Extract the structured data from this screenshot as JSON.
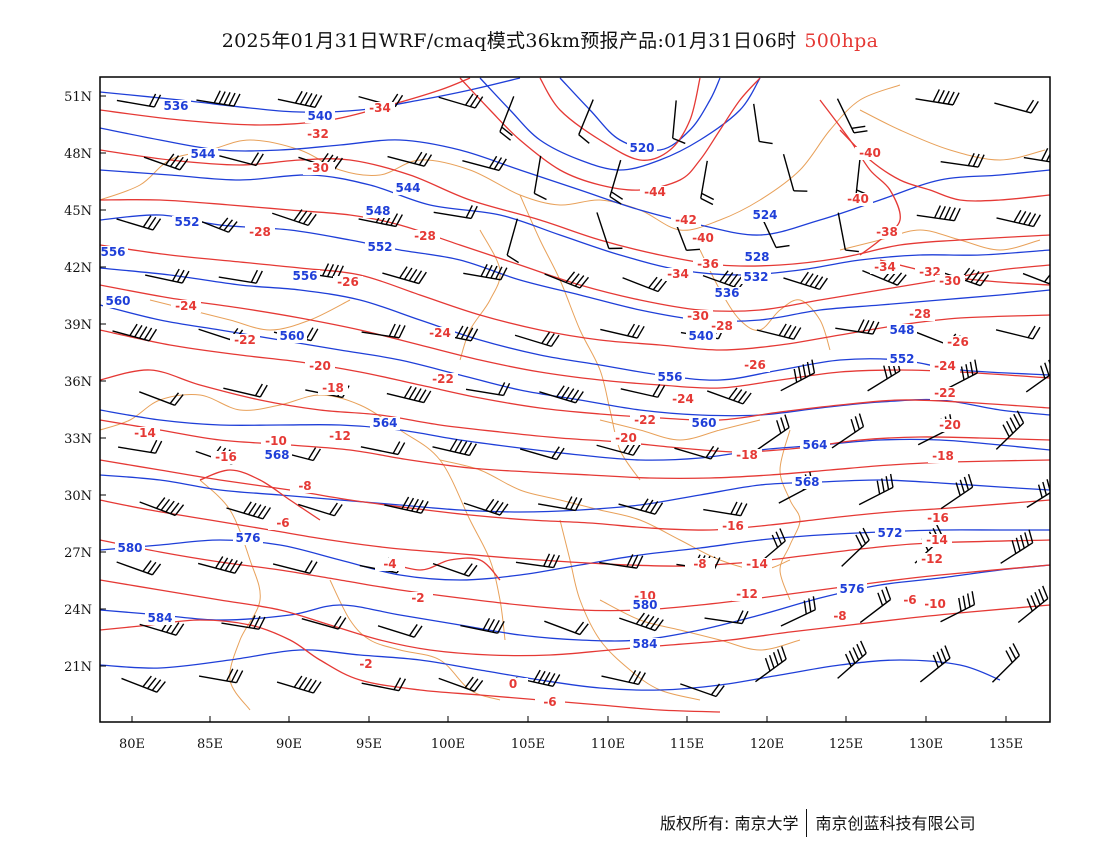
{
  "title": {
    "main": "2025年01月31日WRF/cmaq模式36km预报产品:01月31日06时",
    "level": "500hpa"
  },
  "colors": {
    "temperature": "#e53935",
    "geopotential": "#1f3fd8",
    "border": "#e8a15a",
    "wind": "#000000"
  },
  "axes": {
    "lat_labels": [
      "51N",
      "48N",
      "45N",
      "42N",
      "39N",
      "36N",
      "33N",
      "30N",
      "27N",
      "24N",
      "21N"
    ],
    "lon_labels": [
      "80E",
      "85E",
      "90E",
      "95E",
      "100E",
      "105E",
      "110E",
      "115E",
      "120E",
      "125E",
      "130E",
      "135E"
    ]
  },
  "temperature_labels": [
    "-34",
    "-32",
    "-30",
    "-30",
    "-28",
    "-28",
    "-26",
    "-24",
    "-22",
    "-24",
    "-22",
    "-20",
    "-18",
    "-16",
    "-14",
    "-12",
    "-10",
    "-8",
    "-6",
    "-4",
    "-2",
    "0",
    "-2",
    "-44",
    "-42",
    "-40",
    "-36",
    "-34",
    "-30",
    "-28",
    "-26",
    "-24",
    "-22",
    "-20",
    "-18",
    "-16",
    "-14",
    "-12",
    "-10",
    "-8",
    "-6",
    "-40",
    "-40",
    "-38",
    "-34",
    "-32",
    "-30",
    "-28",
    "-26",
    "-24",
    "-22",
    "-20",
    "-18",
    "-16",
    "-14",
    "-12",
    "-10",
    "-8",
    "-6"
  ],
  "height_labels": [
    "536",
    "540",
    "544",
    "552",
    "556",
    "560",
    "544",
    "548",
    "552",
    "556",
    "560",
    "564",
    "568",
    "576",
    "580",
    "584",
    "520",
    "524",
    "528",
    "532",
    "536",
    "540",
    "548",
    "552",
    "556",
    "560",
    "564",
    "568",
    "572",
    "576",
    "580",
    "584"
  ],
  "footer": {
    "left": "版权所有: 南京大学",
    "right": "南京创蓝科技有限公司"
  }
}
